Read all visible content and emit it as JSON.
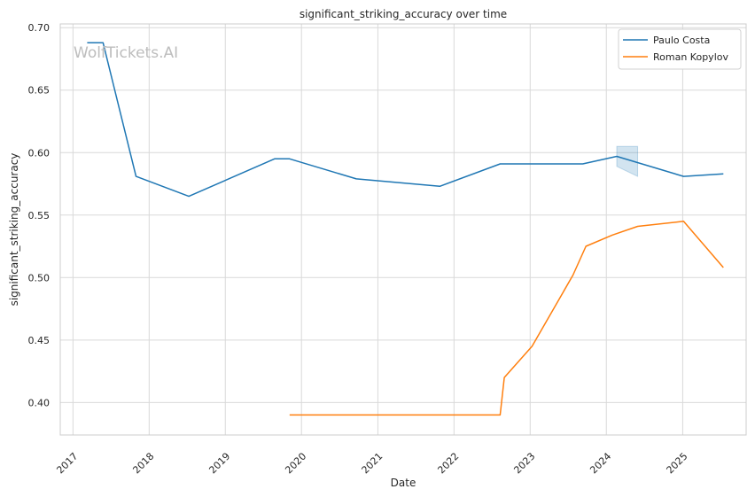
{
  "chart_data": {
    "type": "line",
    "title": "significant_striking_accuracy over time",
    "xlabel": "Date",
    "ylabel": "significant_striking_accuracy",
    "watermark": "WolfTickets.AI",
    "xlim": [
      "2016-11-01",
      "2025-11-01"
    ],
    "ylim": [
      0.374,
      0.703
    ],
    "x_ticks": [
      "2017",
      "2018",
      "2019",
      "2020",
      "2021",
      "2022",
      "2023",
      "2024",
      "2025"
    ],
    "y_ticks": [
      "0.40",
      "0.45",
      "0.50",
      "0.55",
      "0.60",
      "0.65",
      "0.70"
    ],
    "grid": true,
    "legend_position": "top-right",
    "series": [
      {
        "name": "Paulo Costa",
        "color": "#1f77b4",
        "points": [
          [
            "2017-03-10",
            0.688
          ],
          [
            "2017-05-25",
            0.688
          ],
          [
            "2017-10-30",
            0.581
          ],
          [
            "2018-07-10",
            0.565
          ],
          [
            "2019-08-25",
            0.595
          ],
          [
            "2019-11-05",
            0.595
          ],
          [
            "2020-09-20",
            0.579
          ],
          [
            "2021-10-25",
            0.573
          ],
          [
            "2022-08-10",
            0.591
          ],
          [
            "2023-09-10",
            0.591
          ],
          [
            "2024-02-20",
            0.597
          ],
          [
            "2025-01-05",
            0.581
          ],
          [
            "2025-07-15",
            0.583
          ]
        ],
        "band": [
          [
            "2024-02-20",
            0.589,
            0.605
          ],
          [
            "2024-05-30",
            0.581,
            0.605
          ]
        ]
      },
      {
        "name": "Roman Kopylov",
        "color": "#ff7f0e",
        "points": [
          [
            "2019-11-05",
            0.39
          ],
          [
            "2022-08-10",
            0.39
          ],
          [
            "2022-08-30",
            0.42
          ],
          [
            "2023-01-10",
            0.445
          ],
          [
            "2023-07-25",
            0.502
          ],
          [
            "2023-09-25",
            0.525
          ],
          [
            "2024-01-30",
            0.534
          ],
          [
            "2024-05-30",
            0.541
          ],
          [
            "2025-01-05",
            0.545
          ],
          [
            "2025-07-15",
            0.508
          ]
        ]
      }
    ]
  }
}
